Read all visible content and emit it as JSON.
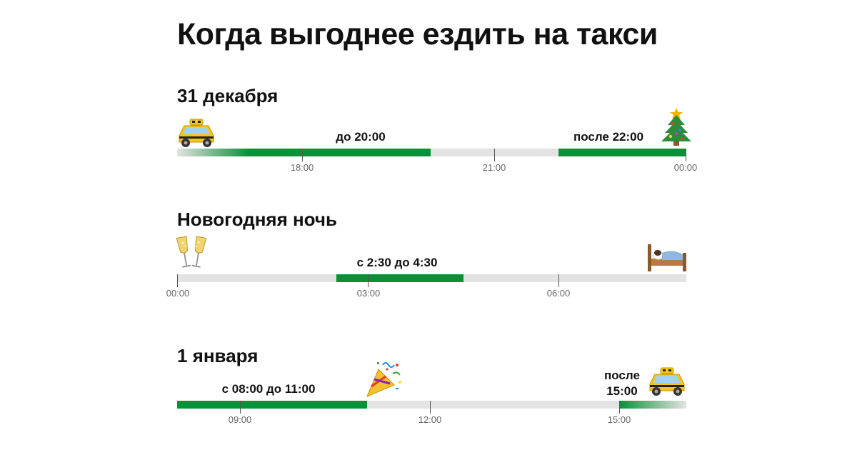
{
  "title": "Когда выгоднее ездить на такси",
  "sections": [
    {
      "heading": "31 декабря",
      "segments": [
        {
          "label": "до 20:00"
        },
        {
          "label": "после 22:00"
        }
      ],
      "ticks": [
        "18:00",
        "21:00",
        "00:00"
      ],
      "icons": [
        "taxi-icon",
        "christmas-tree-icon"
      ]
    },
    {
      "heading": "Новогодняя ночь",
      "segments": [
        {
          "label": "с 2:30 до 4:30"
        }
      ],
      "ticks": [
        "00:00",
        "03:00",
        "06:00"
      ],
      "icons": [
        "champagne-glasses-icon",
        "bed-icon"
      ]
    },
    {
      "heading": "1 января",
      "segments": [
        {
          "label": "с 08:00 до 11:00"
        },
        {
          "label_line1": "после",
          "label_line2": "15:00"
        }
      ],
      "ticks": [
        "09:00",
        "12:00",
        "15:00"
      ],
      "icons": [
        "party-popper-icon",
        "taxi-icon"
      ]
    }
  ],
  "colors": {
    "accent": "#0a9137",
    "track": "#e3e3e3",
    "tick_label": "#666666",
    "taxi": "#f5c518"
  }
}
